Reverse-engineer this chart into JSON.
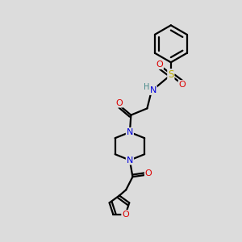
{
  "bg": "#dcdcdc",
  "lw": 1.6,
  "fs": 7.5,
  "colors": {
    "C": "#000000",
    "N": "#0000dd",
    "O": "#dd0000",
    "S": "#bbaa00",
    "H": "#448888"
  }
}
